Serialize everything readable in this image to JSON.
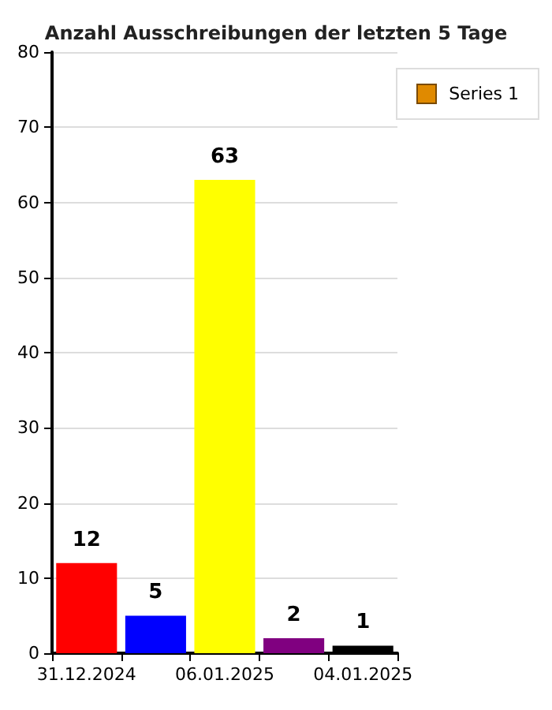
{
  "chart_data": {
    "type": "bar",
    "title": "Anzahl Ausschreibungen der letzten 5 Tage",
    "categories": [
      "31.12.2024",
      null,
      "06.01.2025",
      null,
      "04.01.2025"
    ],
    "series": [
      {
        "name": "Series 1",
        "color": "#e08a00",
        "colors": [
          "#ff0000",
          "#0000ff",
          "#ffff00",
          "#800080",
          "#000000"
        ],
        "values": [
          12,
          5,
          63,
          2,
          1
        ]
      }
    ],
    "ylim": [
      0,
      80
    ],
    "yticks": [
      0,
      10,
      20,
      30,
      40,
      50,
      60,
      70,
      80
    ],
    "grid": "y",
    "legend": "top right",
    "data_labels": true
  }
}
